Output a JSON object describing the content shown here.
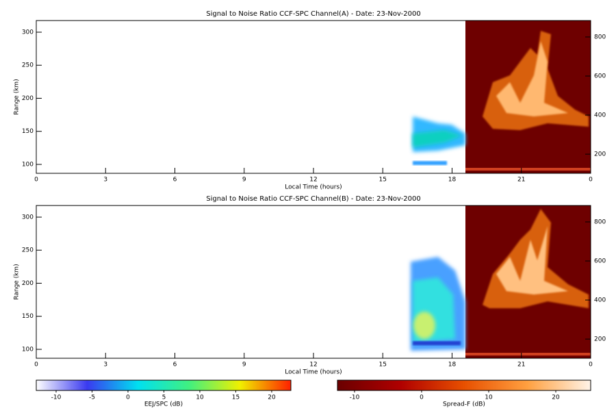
{
  "chart_data": [
    {
      "type": "heatmap",
      "title": "Signal to Noise Ratio CCF-SPC Channel(A) - Date: 23-Nov-2000",
      "xlabel": "Local Time (hours)",
      "ylabel": "Range (km)",
      "xlim": [
        0,
        24
      ],
      "xticks": [
        0,
        3,
        6,
        9,
        12,
        15,
        18,
        21,
        {
          "value": 24,
          "label": "0"
        }
      ],
      "ylim": [
        86.5,
        317.6
      ],
      "yticks": [
        100,
        150,
        200,
        250,
        300
      ],
      "y2lim": [
        102,
        884
      ],
      "y2ticks": [
        200,
        400,
        600,
        800
      ]
    },
    {
      "type": "heatmap",
      "title": "Signal to Noise Ratio CCF-SPC Channel(B) - Date: 23-Nov-2000",
      "xlabel": "Local Time (hours)",
      "ylabel": "Range (km)",
      "xlim": [
        0,
        24
      ],
      "xticks": [
        0,
        3,
        6,
        9,
        12,
        15,
        18,
        21,
        {
          "value": 24,
          "label": "0"
        }
      ],
      "ylim": [
        86.5,
        317.6
      ],
      "yticks": [
        100,
        150,
        200,
        250,
        300
      ],
      "y2lim": [
        102,
        884
      ],
      "y2ticks": [
        200,
        400,
        600,
        800
      ]
    }
  ],
  "colorbars": [
    {
      "label": "EEJ/SPC (dB)",
      "lim": [
        -12.76,
        22.67
      ],
      "ticks": [
        -10,
        -5,
        0,
        5,
        10,
        15,
        20
      ],
      "colors": [
        "#ffffff",
        "#3a3af0",
        "#00e0f0",
        "#40f080",
        "#f0f000",
        "#ff2000"
      ]
    },
    {
      "label": "Spread-F (dB)",
      "lim": [
        -12.55,
        25.2
      ],
      "ticks": [
        -10,
        0,
        10,
        20
      ],
      "colors": [
        "#6a0000",
        "#b00000",
        "#e85000",
        "#ffa040",
        "#fff4e8"
      ]
    }
  ]
}
